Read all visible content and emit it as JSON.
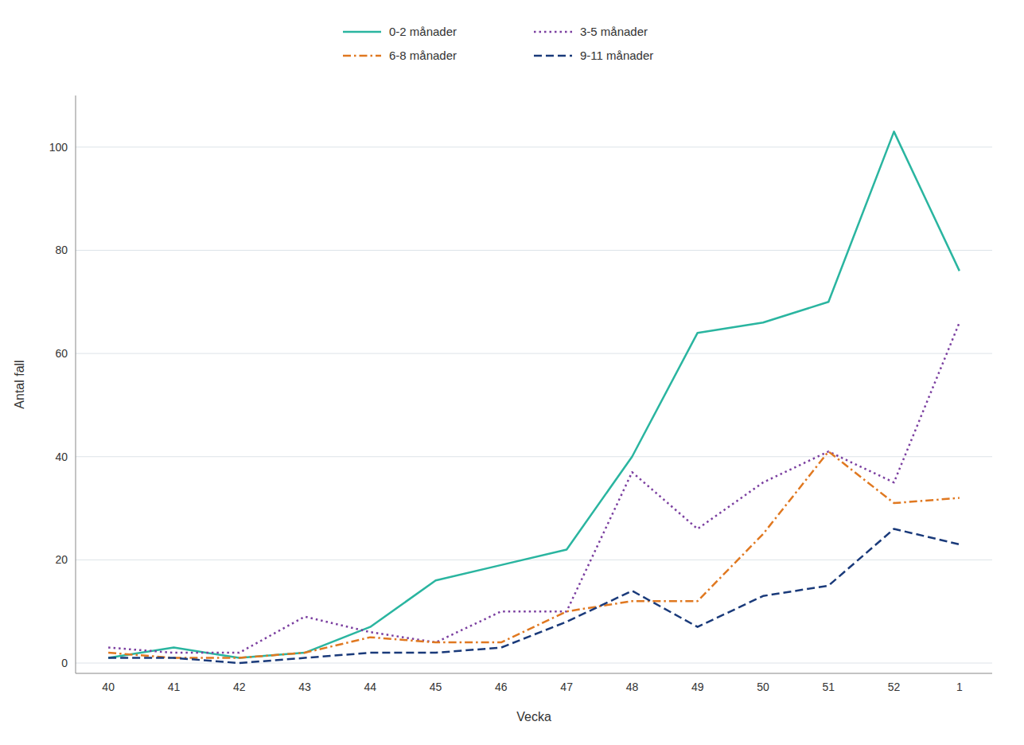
{
  "chart_data": {
    "type": "line",
    "xlabel": "Vecka",
    "ylabel": "Antal fall",
    "categories": [
      "40",
      "41",
      "42",
      "43",
      "44",
      "45",
      "46",
      "47",
      "48",
      "49",
      "50",
      "51",
      "52",
      "1"
    ],
    "series": [
      {
        "name": "0-2 månader",
        "color": "#2ab5a0",
        "line_style": "solid",
        "values": [
          1,
          3,
          1,
          2,
          7,
          16,
          19,
          22,
          40,
          64,
          66,
          70,
          103,
          76
        ]
      },
      {
        "name": "3-5 månader",
        "color": "#7b3fa0",
        "line_style": "dotted",
        "values": [
          3,
          2,
          2,
          9,
          6,
          4,
          10,
          10,
          37,
          26,
          35,
          41,
          35,
          66
        ]
      },
      {
        "name": "6-8 månader",
        "color": "#e07820",
        "line_style": "dashdot",
        "values": [
          2,
          1,
          1,
          2,
          5,
          4,
          4,
          10,
          12,
          12,
          25,
          41,
          31,
          32
        ]
      },
      {
        "name": "9-11 månader",
        "color": "#1a3a7a",
        "line_style": "dashed",
        "values": [
          1,
          1,
          0,
          1,
          2,
          2,
          3,
          8,
          14,
          7,
          13,
          15,
          26,
          23
        ]
      }
    ],
    "ylim": [
      -2,
      110
    ],
    "yticks": [
      0,
      20,
      40,
      60,
      80,
      100
    ],
    "grid": true,
    "legend": "top"
  }
}
